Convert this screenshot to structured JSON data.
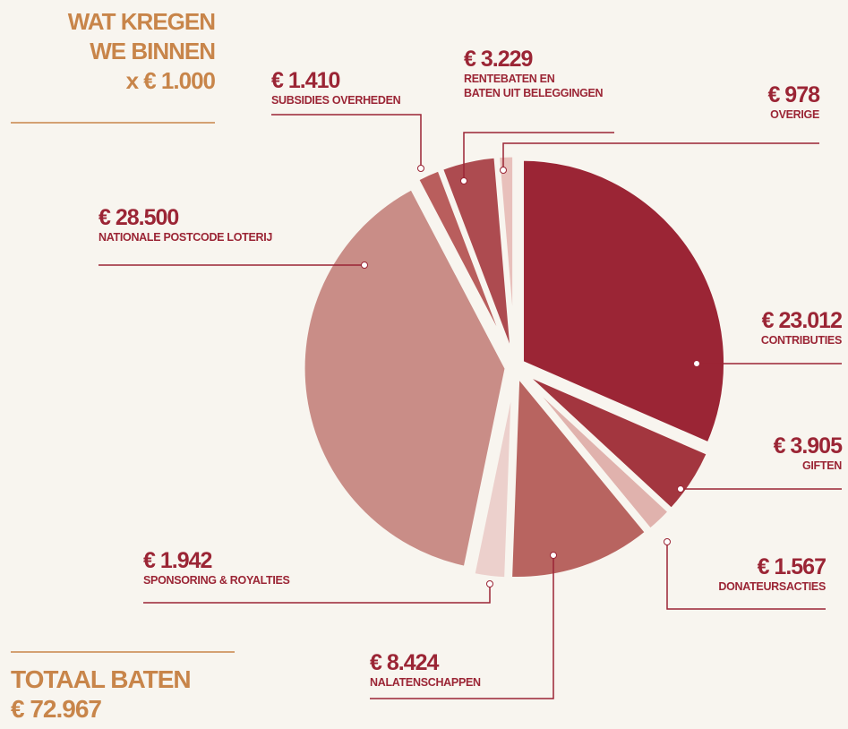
{
  "chart_data": {
    "type": "pie",
    "title": [
      "WAT KREGEN",
      "WE BINNEN"
    ],
    "subtitle": "x € 1.000",
    "categories": [
      "CONTRIBUTIES",
      "GIFTEN",
      "DONATEURSACTIES",
      "NALATENSCHAPPEN",
      "SPONSORING & ROYALTIES",
      "NATIONALE POSTCODE LOTERIJ",
      "SUBSIDIES OVERHEDEN",
      "RENTEBATEN EN\nBATEN UIT BELEGGINGEN",
      "OVERIGE"
    ],
    "values": [
      23012,
      3905,
      1567,
      8424,
      1942,
      28500,
      1410,
      3229,
      978
    ],
    "value_labels": [
      "€ 23.012",
      "€ 3.905",
      "€ 1.567",
      "€ 8.424",
      "€ 1.942",
      "€ 28.500",
      "€ 1.410",
      "€ 3.229",
      "€ 978"
    ],
    "colors": [
      "#9b2535",
      "#a3363f",
      "#e0b2ad",
      "#b86460",
      "#ecd0cc",
      "#c98d87",
      "#b95e5d",
      "#ad4b50",
      "#e8c0bb"
    ],
    "total_label": "TOTAAL BATEN",
    "total": "€ 72.967"
  }
}
